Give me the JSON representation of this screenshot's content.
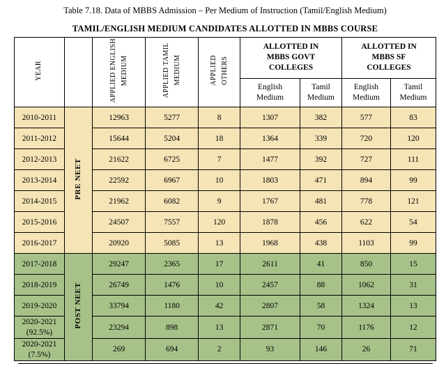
{
  "title": "Table 7.18. Data of MBBS Admission – Per Medium of Instruction (Tamil/English Medium)",
  "subtitle": "TAMIL/ENGLISH MEDIUM CANDIDATES ALLOTTED IN MBBS COURSE",
  "colors": {
    "pre_neet_row": "#F5E4B6",
    "post_neet_row": "#A7C289",
    "border": "#000000",
    "header_bg": "#FFFFFF"
  },
  "table": {
    "headers": {
      "year": "YEAR",
      "applied_english": "APPLIED ENGLISH\nMEDIUM",
      "applied_tamil": "APPLIED TAMIL\nMEDIUM",
      "applied_others": "APPLIED\nOTHERS",
      "govt_group": "ALLOTTED IN\nMBBS GOVT\nCOLLEGES",
      "sf_group": "ALLOTTED IN\nMBBS SF\nCOLLEGES",
      "english_medium": "English\nMedium",
      "tamil_medium": "Tamil\nMedium"
    },
    "groups": [
      {
        "phase": "PRE NEET",
        "color": "#F5E4B6",
        "rows": [
          {
            "year": "2010-2011",
            "values": [
              "12963",
              "5277",
              "8",
              "1307",
              "382",
              "577",
              "83"
            ]
          },
          {
            "year": "2011-2012",
            "values": [
              "15644",
              "5204",
              "18",
              "1364",
              "339",
              "720",
              "120"
            ]
          },
          {
            "year": "2012-2013",
            "values": [
              "21622",
              "6725",
              "7",
              "1477",
              "392",
              "727",
              "111"
            ]
          },
          {
            "year": "2013-2014",
            "values": [
              "22592",
              "6967",
              "10",
              "1803",
              "471",
              "894",
              "99"
            ]
          },
          {
            "year": "2014-2015",
            "values": [
              "21962",
              "6082",
              "9",
              "1767",
              "481",
              "778",
              "121"
            ]
          },
          {
            "year": "2015-2016",
            "values": [
              "24507",
              "7557",
              "120",
              "1878",
              "456",
              "622",
              "54"
            ]
          },
          {
            "year": "2016-2017",
            "values": [
              "20920",
              "5085",
              "13",
              "1968",
              "438",
              "1103",
              "99"
            ]
          }
        ]
      },
      {
        "phase": "POST NEET",
        "color": "#A7C289",
        "rows": [
          {
            "year": "2017-2018",
            "values": [
              "29247",
              "2365",
              "17",
              "2611",
              "41",
              "850",
              "15"
            ]
          },
          {
            "year": "2018-2019",
            "values": [
              "26749",
              "1476",
              "10",
              "2457",
              "88",
              "1062",
              "31"
            ]
          },
          {
            "year": "2019-2020",
            "values": [
              "33794",
              "1180",
              "42",
              "2807",
              "58",
              "1324",
              "13"
            ]
          },
          {
            "year": "2020-2021\n(92.5%)",
            "values": [
              "23294",
              "898",
              "13",
              "2871",
              "70",
              "1176",
              "12"
            ]
          },
          {
            "year": "2020-2021\n(7.5%)",
            "values": [
              "269",
              "694",
              "2",
              "93",
              "146",
              "26",
              "71"
            ]
          }
        ]
      }
    ]
  }
}
